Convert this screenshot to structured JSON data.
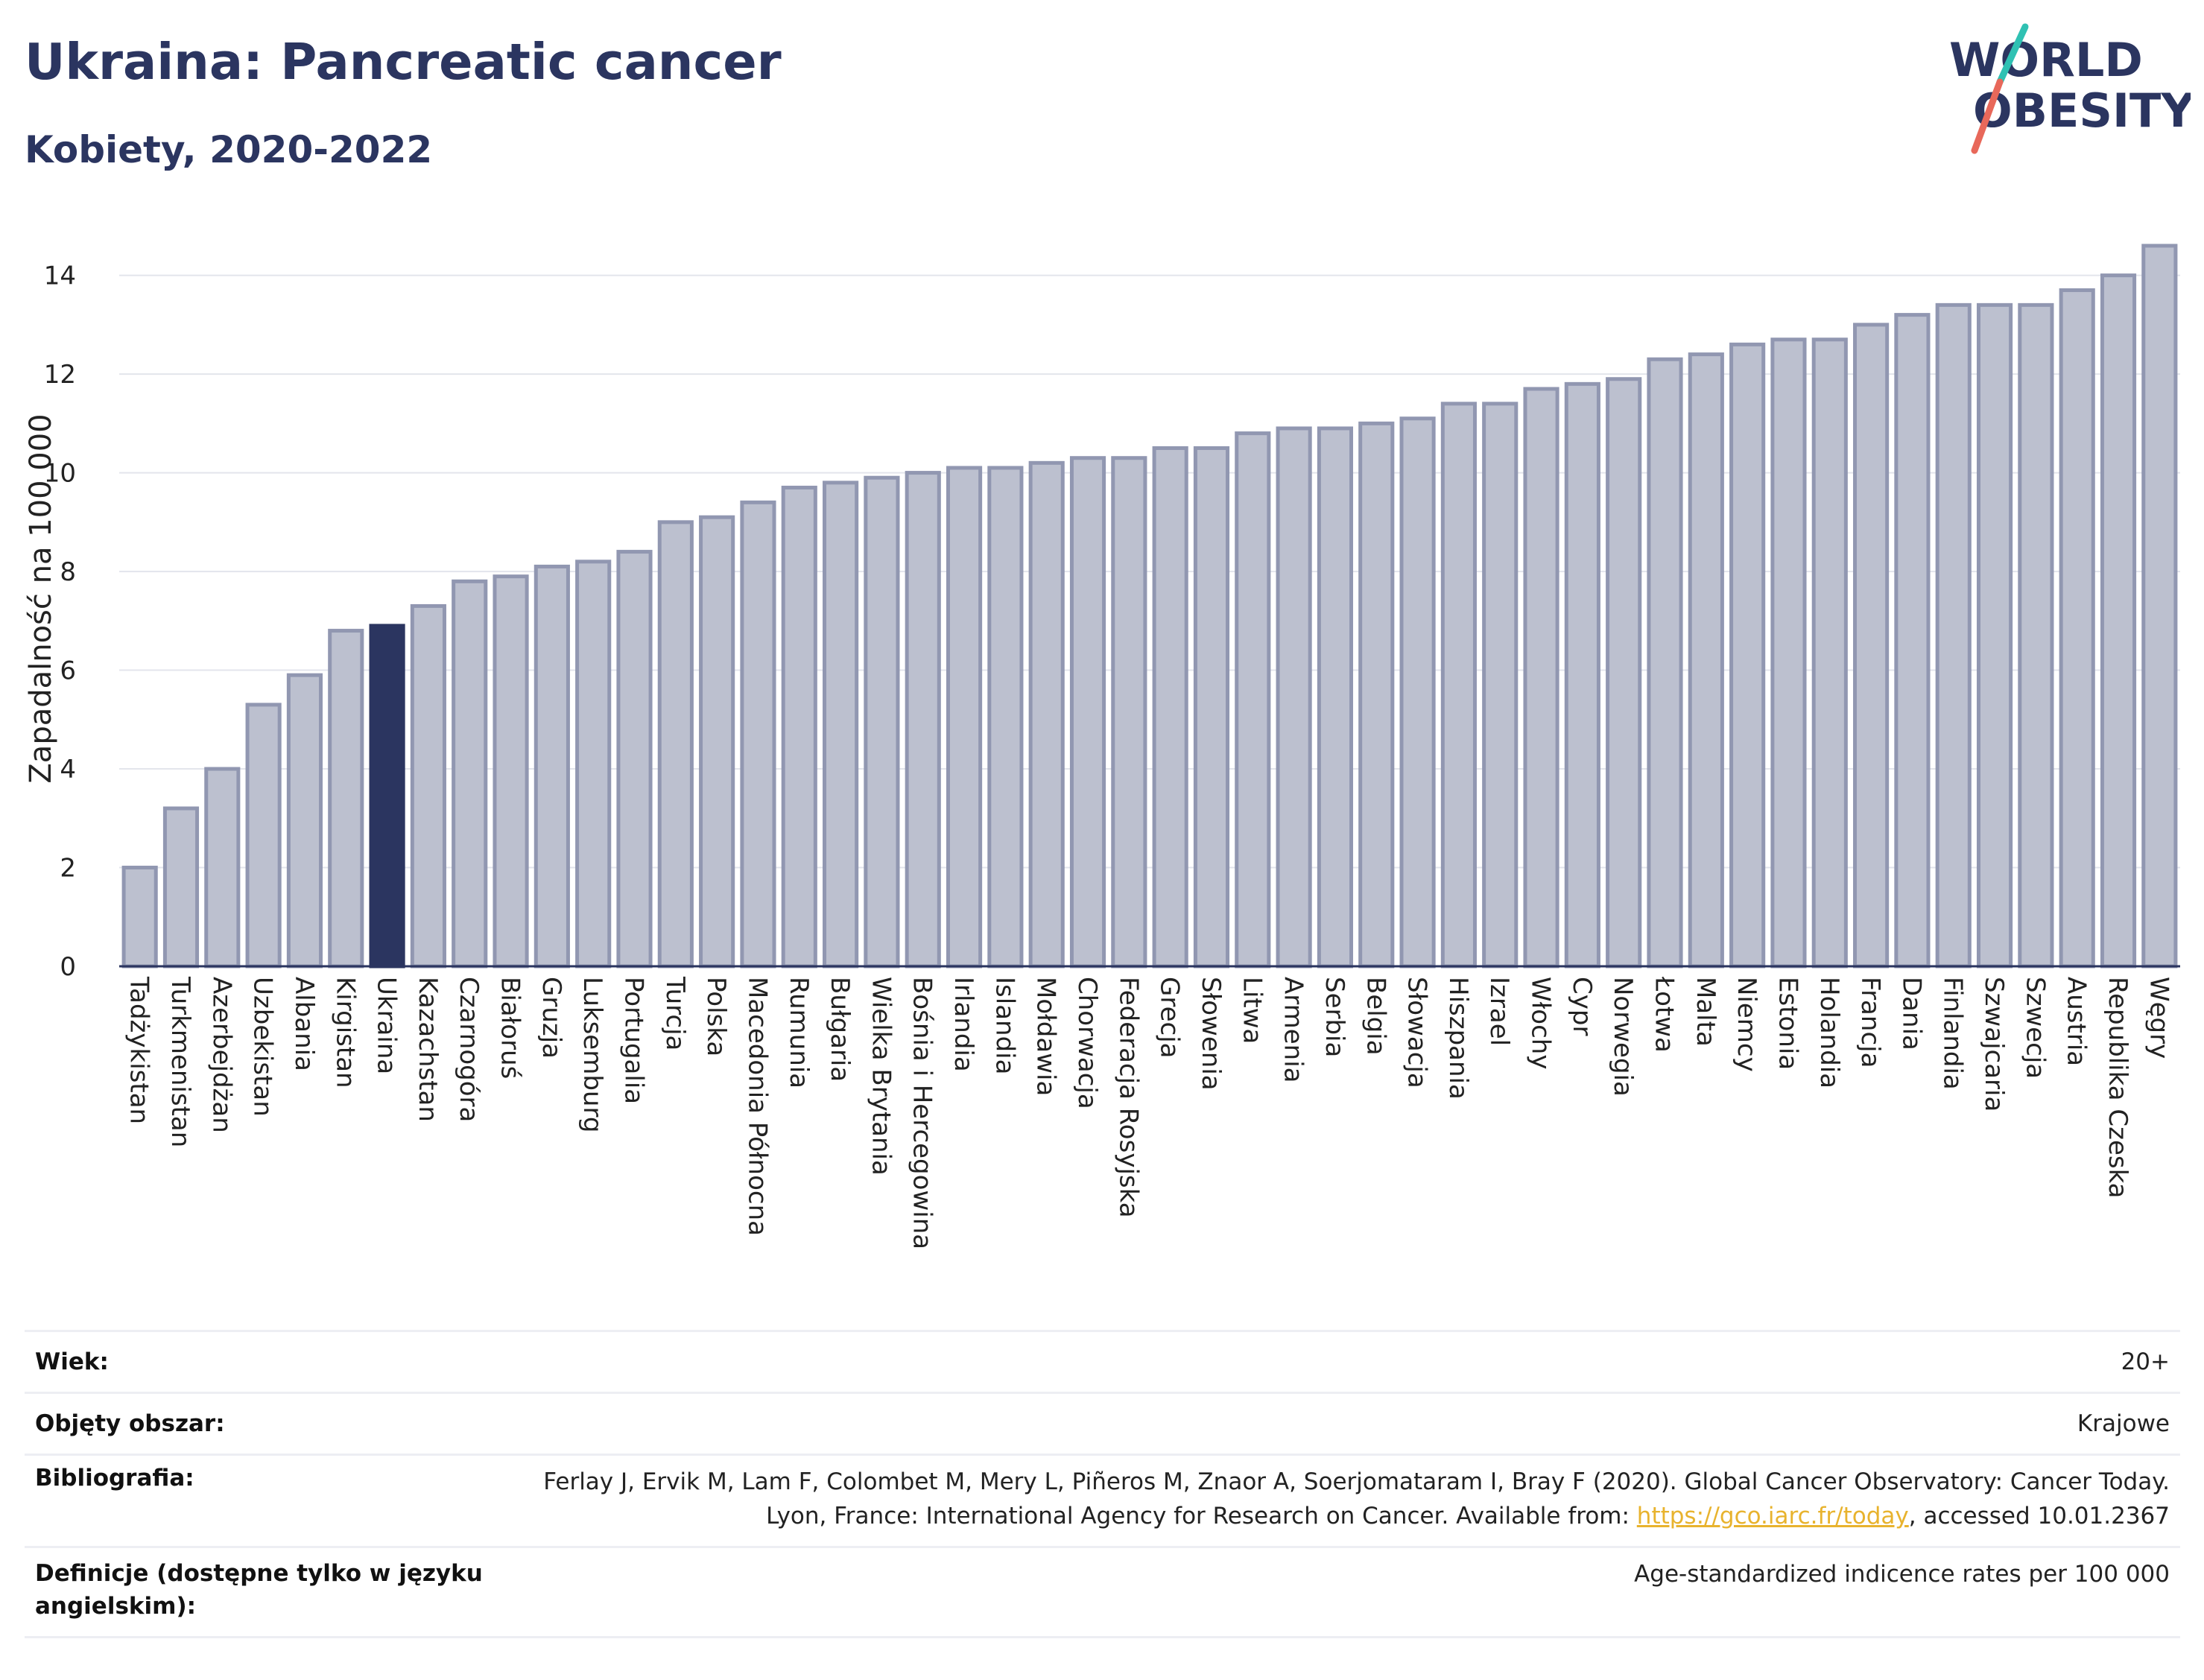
{
  "header": {
    "title": "Ukraina: Pancreatic cancer",
    "subtitle": "Kobiety, 2020-2022"
  },
  "logo": {
    "line1": "WORLD",
    "line2": "OBESITY",
    "colors": {
      "text": "#2b3560",
      "slash_teal": "#2fc1b3",
      "slash_red": "#e8685a"
    }
  },
  "chart_data": {
    "type": "bar",
    "ylabel": "Zapadalność na 100 000",
    "ylim": [
      0,
      14.9
    ],
    "yticks": [
      0,
      2,
      4,
      6,
      8,
      10,
      12,
      14
    ],
    "grid": true,
    "highlight": "Ukraina",
    "colors": {
      "bar": "#bcc0cf",
      "bar_border": "#9197b1",
      "highlight": "#2b3560",
      "grid": "#e3e5ec",
      "axis": "#2b3560"
    },
    "categories": [
      "Tadżykistan",
      "Turkmenistan",
      "Azerbejdżan",
      "Uzbekistan",
      "Albania",
      "Kirgistan",
      "Ukraina",
      "Kazachstan",
      "Czarnogóra",
      "Białoruś",
      "Gruzja",
      "Luksemburg",
      "Portugalia",
      "Turcja",
      "Polska",
      "Macedonia Północna",
      "Rumunia",
      "Bułgaria",
      "Wielka Brytania",
      "Bośnia i Hercegowina",
      "Irlandia",
      "Islandia",
      "Mołdawia",
      "Chorwacja",
      "Federacja Rosyjska",
      "Grecja",
      "Słowenia",
      "Litwa",
      "Armenia",
      "Serbia",
      "Belgia",
      "Słowacja",
      "Hiszpania",
      "Izrael",
      "Włochy",
      "Cypr",
      "Norwegia",
      "Łotwa",
      "Malta",
      "Niemcy",
      "Estonia",
      "Holandia",
      "Francja",
      "Dania",
      "Finlandia",
      "Szwajcaria",
      "Szwecja",
      "Austria",
      "Republika Czeska",
      "Węgry"
    ],
    "values": [
      2.0,
      3.2,
      4.0,
      5.3,
      5.9,
      6.8,
      6.9,
      7.3,
      7.8,
      7.9,
      8.1,
      8.2,
      8.4,
      9.0,
      9.1,
      9.4,
      9.7,
      9.8,
      9.9,
      10.0,
      10.1,
      10.1,
      10.2,
      10.3,
      10.3,
      10.5,
      10.5,
      10.8,
      10.9,
      10.9,
      11.0,
      11.1,
      11.4,
      11.4,
      11.7,
      11.8,
      11.9,
      12.3,
      12.4,
      12.6,
      12.7,
      12.7,
      13.0,
      13.2,
      13.4,
      13.4,
      13.4,
      13.7,
      14.0,
      14.6
    ]
  },
  "meta": {
    "rows": [
      {
        "label": "Wiek:",
        "value": "20+"
      },
      {
        "label": "Objęty obszar:",
        "value": "Krajowe"
      },
      {
        "label": "Bibliografia:",
        "value_before": "Ferlay J, Ervik M, Lam F, Colombet M, Mery L, Piñeros M, Znaor A, Soerjomataram I, Bray F (2020). Global Cancer Observatory: Cancer Today. Lyon, France: International Agency for Research on Cancer. Available from: ",
        "link": "https://gco.iarc.fr/today",
        "value_after": ", accessed 10.01.2367"
      },
      {
        "label": "Definicje (dostępne tylko w języku angielskim):",
        "value": "Age-standardized indicence rates per 100 000"
      }
    ]
  }
}
